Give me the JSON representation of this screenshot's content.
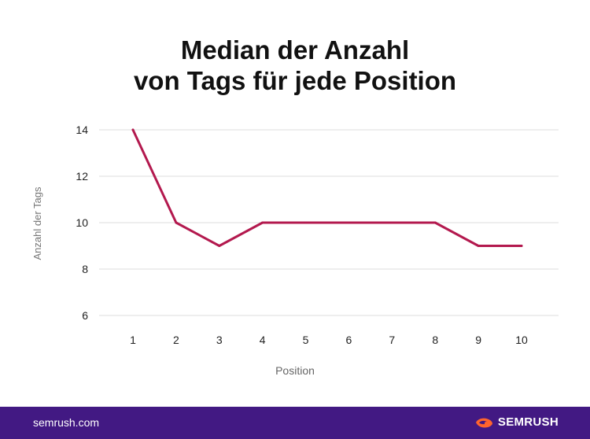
{
  "title_line1": "Median der Anzahl",
  "title_line2": "von Tags für jede Position",
  "chart_data": {
    "type": "line",
    "title": "Median der Anzahl von Tags für jede Position",
    "xlabel": "Position",
    "ylabel": "Anzahl der Tags",
    "x": [
      1,
      2,
      3,
      4,
      5,
      6,
      7,
      8,
      9,
      10
    ],
    "y": [
      14,
      10,
      9,
      10,
      10,
      10,
      10,
      10,
      9,
      9
    ],
    "yticks": [
      6,
      8,
      10,
      12,
      14
    ],
    "xticks": [
      1,
      2,
      3,
      4,
      5,
      6,
      7,
      8,
      9,
      10
    ],
    "ylim": [
      6,
      14
    ],
    "grid": true,
    "line_color": "#b3194e"
  },
  "footer": {
    "url": "semrush.com",
    "brand": "SEMRUSH",
    "background": "#421983",
    "logo_color": "#ff642d"
  }
}
